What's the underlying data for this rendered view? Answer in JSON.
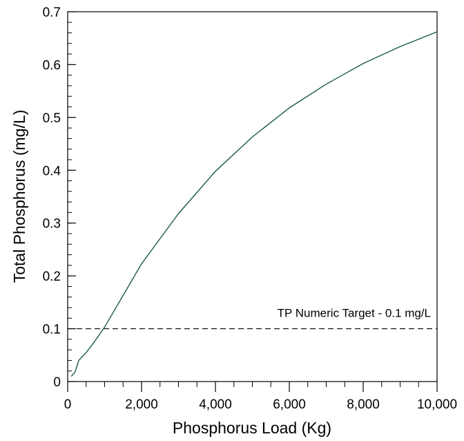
{
  "chart_data": {
    "type": "line",
    "title": "",
    "xlabel": "Phosphorus Load (Kg)",
    "ylabel": "Total Phosphorus (mg/L)",
    "xlim": [
      0,
      10000
    ],
    "ylim": [
      0,
      0.7
    ],
    "x_ticks": [
      0,
      2000,
      4000,
      6000,
      8000,
      10000
    ],
    "x_tick_labels": [
      "0",
      "2,000",
      "4,000",
      "6,000",
      "8,000",
      "10,000"
    ],
    "x_minor_step": 500,
    "y_ticks": [
      0,
      0.1,
      0.2,
      0.3,
      0.4,
      0.5,
      0.6,
      0.7
    ],
    "y_tick_labels": [
      "0",
      "0.1",
      "0.2",
      "0.3",
      "0.4",
      "0.5",
      "0.6",
      "0.7"
    ],
    "y_minor_step": 0.02,
    "grid": false,
    "series": [
      {
        "color": "#1a5c3a",
        "x": [
          100,
          200,
          300,
          500,
          700,
          1000,
          1500,
          2000,
          3000,
          4000,
          5000,
          6000,
          7000,
          8000,
          9000,
          10000
        ],
        "y": [
          0.01,
          0.018,
          0.04,
          0.055,
          0.073,
          0.103,
          0.163,
          0.223,
          0.318,
          0.398,
          0.463,
          0.518,
          0.563,
          0.602,
          0.634,
          0.662
        ]
      }
    ],
    "reference_line": {
      "y": 0.1,
      "style": "dashed",
      "color": "#000000",
      "label": "TP Numeric Target - 0.1 mg/L"
    }
  }
}
